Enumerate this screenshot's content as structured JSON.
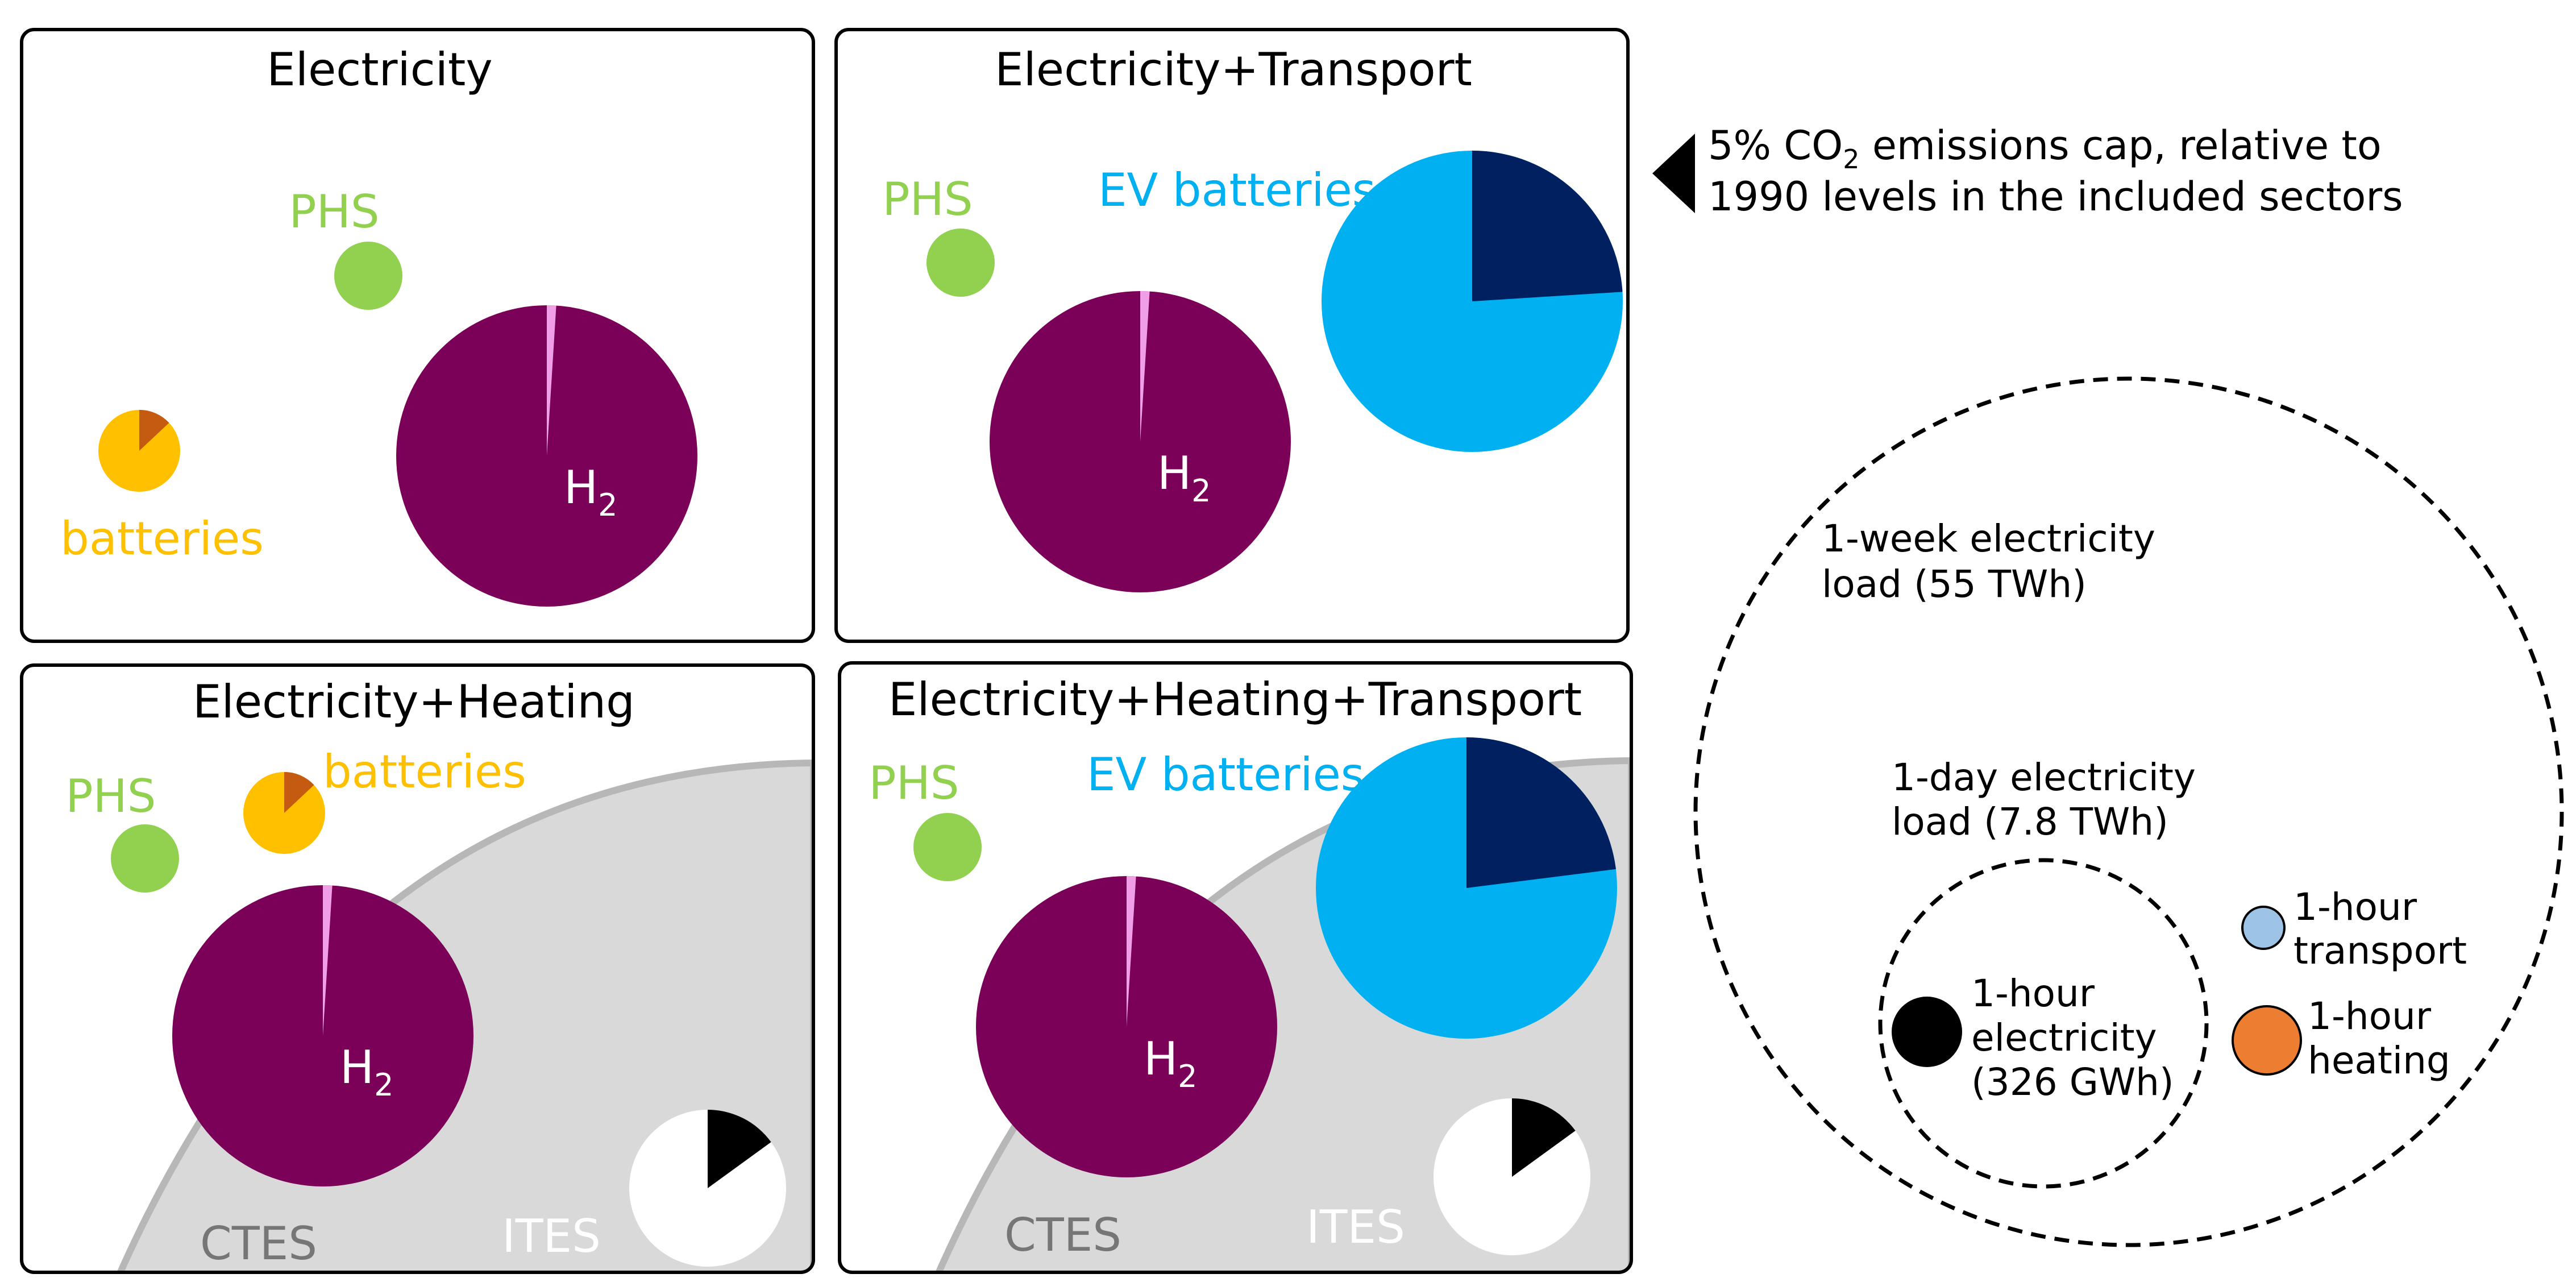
{
  "colors": {
    "phs": "#92d050",
    "batteries": "#ffc000",
    "batteries_dark": "#c55a11",
    "h2": "#7a0058",
    "h2_slice": "#f09fe6",
    "ev": "#00b0f0",
    "ev_dark": "#002060",
    "ctes_fill": "#d9d9d9",
    "ctes_edge": "#b7b7b7",
    "ctes_text": "#767676",
    "ites": "#ffffff",
    "ites_dark": "#000000",
    "transport": "#9dc3e6",
    "heating": "#ed7d31",
    "electricity": "#000000"
  },
  "panels": [
    {
      "id": "electricity",
      "title": "Electricity",
      "phs_label": "PHS",
      "batteries_label": "batteries",
      "h2_label": "H",
      "h2_sub": "2",
      "batteries_dark_fraction": 0.13,
      "h2_slice_fraction": 0.01
    },
    {
      "id": "electricity-transport",
      "title": "Electricity+Transport",
      "phs_label": "PHS",
      "ev_label": "EV batteries",
      "h2_label": "H",
      "h2_sub": "2",
      "ev_dark_fraction": 0.24,
      "h2_slice_fraction": 0.01
    },
    {
      "id": "electricity-heating",
      "title": "Electricity+Heating",
      "phs_label": "PHS",
      "batteries_label": "batteries",
      "h2_label": "H",
      "h2_sub": "2",
      "ctes_label": "CTES",
      "ites_label": "ITES",
      "batteries_dark_fraction": 0.13,
      "h2_slice_fraction": 0.01,
      "ites_dark_fraction": 0.15
    },
    {
      "id": "electricity-heating-transport",
      "title": "Electricity+Heating+Transport",
      "phs_label": "PHS",
      "ev_label": "EV batteries",
      "h2_label": "H",
      "h2_sub": "2",
      "ctes_label": "CTES",
      "ites_label": "ITES",
      "ev_dark_fraction": 0.23,
      "h2_slice_fraction": 0.01,
      "ites_dark_fraction": 0.15
    }
  ],
  "note": {
    "line1_a": "5% CO",
    "line1_sub": "2",
    "line1_b": " emissions cap, relative to",
    "line2": "1990 levels in the included sectors"
  },
  "legend": {
    "week_line1": "1-week electricity",
    "week_line2": "load (55 TWh)",
    "day_line1": "1-day electricity",
    "day_line2": "load (7.8 TWh)",
    "hour_elec_line1": "1-hour",
    "hour_elec_line2": "electricity",
    "hour_elec_line3": "(326 GWh)",
    "hour_transport_line1": "1-hour",
    "hour_transport_line2": "transport",
    "hour_heating_line1": "1-hour",
    "hour_heating_line2": "heating"
  }
}
